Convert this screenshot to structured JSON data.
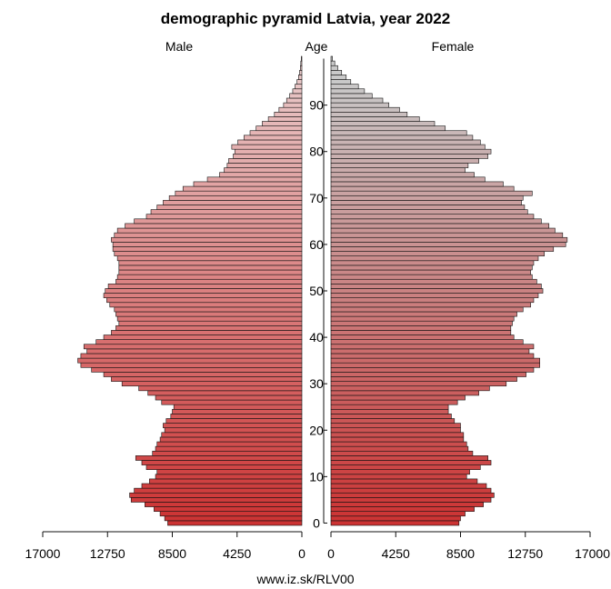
{
  "chart_data": {
    "type": "bar",
    "title": "demographic pyramid Latvia, year 2022",
    "left_label": "Male",
    "center_label": "Age",
    "right_label": "Female",
    "footer": "www.iz.sk/RLV00",
    "x_ticks_male": [
      "17000",
      "12750",
      "8500",
      "4250",
      "0"
    ],
    "x_ticks_female": [
      "0",
      "4250",
      "8500",
      "12750",
      "17000"
    ],
    "xlim": [
      0,
      17000
    ],
    "age_ticks": [
      "0",
      "10",
      "20",
      "30",
      "40",
      "50",
      "60",
      "70",
      "80",
      "90"
    ],
    "ages": [
      0,
      1,
      2,
      3,
      4,
      5,
      6,
      7,
      8,
      9,
      10,
      11,
      12,
      13,
      14,
      15,
      16,
      17,
      18,
      19,
      20,
      21,
      22,
      23,
      24,
      25,
      26,
      27,
      28,
      29,
      30,
      31,
      32,
      33,
      34,
      35,
      36,
      37,
      38,
      39,
      40,
      41,
      42,
      43,
      44,
      45,
      46,
      47,
      48,
      49,
      50,
      51,
      52,
      53,
      54,
      55,
      56,
      57,
      58,
      59,
      60,
      61,
      62,
      63,
      64,
      65,
      66,
      67,
      68,
      69,
      70,
      71,
      72,
      73,
      74,
      75,
      76,
      77,
      78,
      79,
      80,
      81,
      82,
      83,
      84,
      85,
      86,
      87,
      88,
      89,
      90,
      91,
      92,
      93,
      94,
      95,
      96,
      97,
      98,
      99,
      100
    ],
    "series": [
      {
        "name": "Male",
        "color": "#cc3333",
        "values": [
          8800,
          9000,
          9300,
          9700,
          10300,
          11200,
          11300,
          11000,
          10500,
          10000,
          9600,
          9500,
          10200,
          10500,
          10900,
          9800,
          9600,
          9500,
          9300,
          9200,
          9000,
          9100,
          8900,
          8600,
          8500,
          8400,
          9200,
          9600,
          10100,
          10700,
          11800,
          12500,
          13000,
          13800,
          14500,
          14700,
          14500,
          14100,
          14300,
          13500,
          13000,
          12500,
          12200,
          12000,
          12100,
          12200,
          12300,
          12600,
          12800,
          13000,
          12900,
          12700,
          12200,
          12100,
          12000,
          12000,
          12000,
          12100,
          12300,
          12400,
          12400,
          12500,
          12300,
          12100,
          11600,
          11000,
          10200,
          9900,
          9500,
          9100,
          8700,
          8300,
          7800,
          7100,
          6200,
          5400,
          5100,
          4900,
          4800,
          4500,
          4400,
          4600,
          4200,
          3800,
          3400,
          3000,
          2600,
          2200,
          1800,
          1500,
          1200,
          1000,
          800,
          600,
          450,
          320,
          220,
          150,
          100,
          70,
          40
        ]
      },
      {
        "name": "Female",
        "color": "#c9c9c9",
        "values": [
          8400,
          8500,
          8800,
          9400,
          10000,
          10500,
          10700,
          10500,
          10200,
          9600,
          8900,
          9100,
          9800,
          10500,
          10300,
          9300,
          9000,
          8900,
          8700,
          8700,
          8500,
          8500,
          8100,
          7900,
          7700,
          7700,
          8300,
          8800,
          9700,
          10400,
          11500,
          12200,
          12800,
          13300,
          13700,
          13700,
          13300,
          13000,
          13300,
          12600,
          12000,
          11800,
          11800,
          11900,
          12000,
          12200,
          12600,
          13100,
          13300,
          13600,
          13900,
          13800,
          13500,
          13200,
          13100,
          13200,
          13300,
          13600,
          14000,
          14600,
          15400,
          15500,
          15200,
          14700,
          14300,
          13800,
          13300,
          12900,
          12700,
          12500,
          12600,
          13200,
          12000,
          11300,
          10100,
          9400,
          8800,
          9000,
          9700,
          10300,
          10500,
          10100,
          9800,
          9300,
          8900,
          7500,
          6800,
          5800,
          5000,
          4500,
          3800,
          3400,
          2700,
          2200,
          1800,
          1300,
          1000,
          700,
          450,
          250,
          100
        ]
      }
    ]
  }
}
